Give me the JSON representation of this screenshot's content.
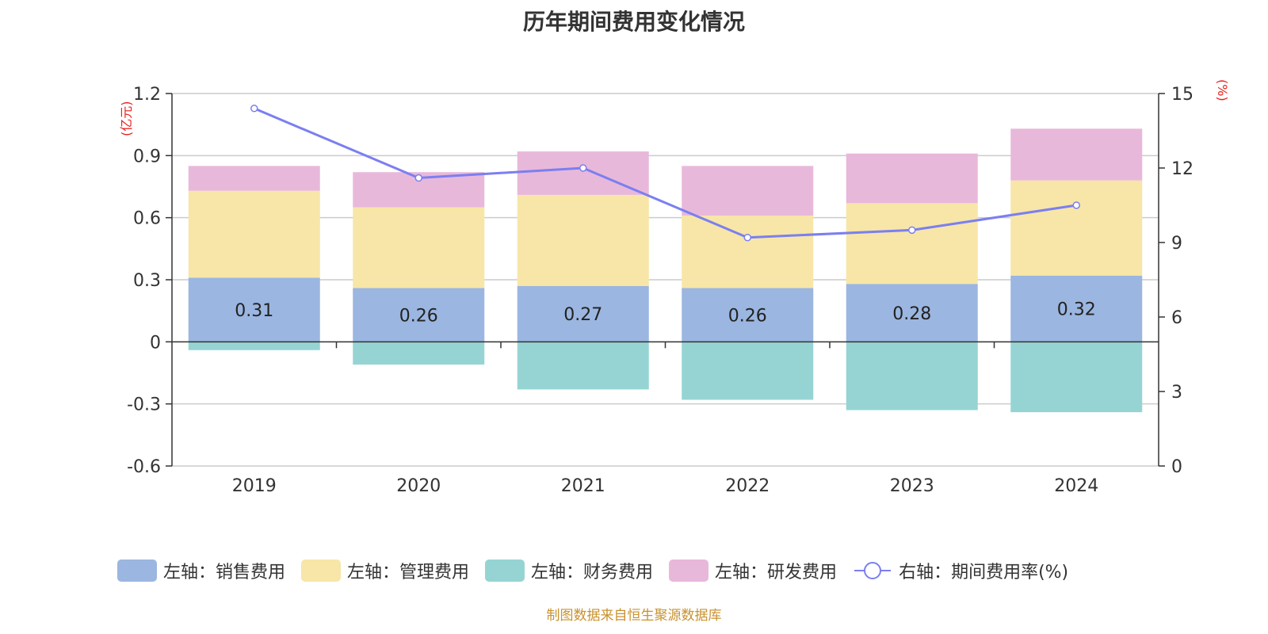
{
  "chart_data": {
    "type": "bar",
    "title": "历年期间费用变化情况",
    "categories": [
      "2019",
      "2020",
      "2021",
      "2022",
      "2023",
      "2024"
    ],
    "y_left": {
      "unit_label": "(亿元)",
      "range": [
        -0.6,
        1.2
      ],
      "ticks": [
        "1.2",
        "0.9",
        "0.6",
        "0.3",
        "0",
        "-0.3",
        "-0.6"
      ],
      "tick_values": [
        1.2,
        0.9,
        0.6,
        0.3,
        0,
        -0.3,
        -0.6
      ]
    },
    "y_right": {
      "unit_label": "(%)",
      "range": [
        0,
        15
      ],
      "ticks": [
        "15",
        "12",
        "9",
        "6",
        "3",
        "0"
      ],
      "tick_values": [
        15,
        12,
        9,
        6,
        3,
        0
      ]
    },
    "grid": true,
    "legend_position": "bottom",
    "series": [
      {
        "name": "左轴：销售费用",
        "axis": "left",
        "kind": "bar",
        "color": "#9bb6e0",
        "values": [
          0.31,
          0.26,
          0.27,
          0.26,
          0.28,
          0.32
        ],
        "labels": [
          "0.31",
          "0.26",
          "0.27",
          "0.26",
          "0.28",
          "0.32"
        ]
      },
      {
        "name": "左轴：管理费用",
        "axis": "left",
        "kind": "bar",
        "color": "#f7e6a7",
        "values": [
          0.42,
          0.39,
          0.44,
          0.35,
          0.39,
          0.46
        ]
      },
      {
        "name": "左轴：财务费用",
        "axis": "left",
        "kind": "bar",
        "color": "#96d4d4",
        "values": [
          -0.04,
          -0.11,
          -0.23,
          -0.28,
          -0.33,
          -0.34
        ]
      },
      {
        "name": "左轴：研发费用",
        "axis": "left",
        "kind": "bar",
        "color": "#e8b8da",
        "values": [
          0.12,
          0.17,
          0.21,
          0.24,
          0.24,
          0.25
        ]
      },
      {
        "name": "右轴：期间费用率(%)",
        "axis": "right",
        "kind": "line",
        "color": "#7b7ff0",
        "values": [
          14.4,
          11.6,
          12.0,
          9.2,
          9.5,
          10.5
        ]
      }
    ]
  },
  "source_note": "制图数据来自恒生聚源数据库"
}
